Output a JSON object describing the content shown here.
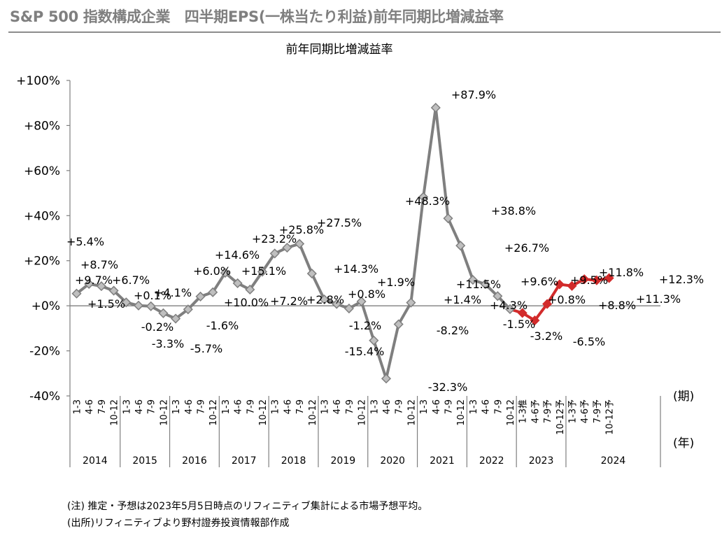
{
  "page_title": "S&P 500 指数構成企業　四半期EPS(一株当たり利益)前年同期比増減益率",
  "notes": [
    "(注) 推定・予想は2023年5月5日時点のリフィニティブ集計による市場予想平均。",
    "(出所)リフィニティブより野村證券投資情報部作成"
  ],
  "chart_data": {
    "type": "line",
    "title": "前年同期比増減益率",
    "xlabel_period_unit": "(期)",
    "xlabel_year_unit": "(年)",
    "ylim": [
      -40,
      100
    ],
    "yticks": [
      -40,
      -20,
      0,
      20,
      40,
      60,
      80,
      100
    ],
    "ytick_labels": [
      "-40%",
      "-20%",
      "+0%",
      "+20%",
      "+40%",
      "+60%",
      "+80%",
      "+100%"
    ],
    "years": [
      "2014",
      "2015",
      "2016",
      "2017",
      "2018",
      "2019",
      "2020",
      "2021",
      "2022",
      "2023",
      "2024"
    ],
    "quarter_labels": [
      "1-3",
      "4-6",
      "7-9",
      "10-12",
      "1-3",
      "4-6",
      "7-9",
      "10-12",
      "1-3",
      "4-6",
      "7-9",
      "10-12",
      "1-3",
      "4-6",
      "7-9",
      "10-12",
      "1-3",
      "4-6",
      "7-9",
      "10-12",
      "1-3",
      "4-6",
      "7-9",
      "10-12",
      "1-3",
      "4-6",
      "7-9",
      "10-12",
      "1-3",
      "4-6",
      "7-9",
      "10-12",
      "1-3",
      "4-6",
      "7-9",
      "10-12",
      "1-3推",
      "4-6予",
      "7-9予",
      "10-12予",
      "1-3予",
      "4-6予",
      "7-9予",
      "10-12予"
    ],
    "series": [
      {
        "role": "actual",
        "color": "#7f7f7f",
        "marker_fill": "#bfbfbf",
        "values": [
          5.4,
          9.7,
          8.7,
          6.7,
          1.5,
          0.1,
          -0.2,
          -3.3,
          -5.7,
          -1.6,
          4.1,
          6.0,
          14.6,
          10.0,
          7.2,
          15.1,
          23.2,
          25.8,
          27.5,
          14.3,
          2.8,
          0.8,
          -1.2,
          1.9,
          -15.4,
          -32.3,
          -8.2,
          1.4,
          48.3,
          87.9,
          38.8,
          26.7,
          11.5,
          9.6,
          4.3,
          -1.5
        ]
      },
      {
        "role": "estimate",
        "color": "#d22b2b",
        "marker_fill": "#d22b2b",
        "values": [
          -3.2,
          -6.5,
          0.8,
          9.5,
          8.8,
          11.8,
          11.3,
          12.3
        ]
      }
    ],
    "data_labels": [
      {
        "i": 1,
        "text": "+9.7%"
      },
      {
        "i": 0,
        "text": "+5.4%"
      },
      {
        "i": 2,
        "text": "+8.7%"
      },
      {
        "i": 3,
        "text": "+6.7%"
      },
      {
        "i": 4,
        "text": "+1.5%"
      },
      {
        "i": 5,
        "text": "+0.1%"
      },
      {
        "i": 6,
        "text": "-0.2%"
      },
      {
        "i": 7,
        "text": "-3.3%"
      },
      {
        "i": 8,
        "text": "-5.7%"
      },
      {
        "i": 9,
        "text": "-1.6%"
      },
      {
        "i": 10,
        "text": "+4.1%"
      },
      {
        "i": 11,
        "text": "+6.0%"
      },
      {
        "i": 12,
        "text": "+14.6%"
      },
      {
        "i": 13,
        "text": "+10.0%"
      },
      {
        "i": 14,
        "text": "+7.2%"
      },
      {
        "i": 15,
        "text": "+15.1%"
      },
      {
        "i": 16,
        "text": "+23.2%"
      },
      {
        "i": 17,
        "text": "+25.8%"
      },
      {
        "i": 18,
        "text": "+27.5%"
      },
      {
        "i": 19,
        "text": "+14.3%"
      },
      {
        "i": 20,
        "text": "+2.8%"
      },
      {
        "i": 21,
        "text": "+0.8%"
      },
      {
        "i": 22,
        "text": "-1.2%"
      },
      {
        "i": 23,
        "text": "+1.9%"
      },
      {
        "i": 24,
        "text": "-15.4%"
      },
      {
        "i": 25,
        "text": "-32.3%"
      },
      {
        "i": 26,
        "text": "-8.2%"
      },
      {
        "i": 27,
        "text": "+1.4%"
      },
      {
        "i": 28,
        "text": "+48.3%"
      },
      {
        "i": 29,
        "text": "+87.9%"
      },
      {
        "i": 30,
        "text": "+38.8%"
      },
      {
        "i": 31,
        "text": "+26.7%"
      },
      {
        "i": 32,
        "text": "+11.5%"
      },
      {
        "i": 33,
        "text": "+9.6%"
      },
      {
        "i": 34,
        "text": "+4.3%"
      },
      {
        "i": 35,
        "text": "-1.5%"
      },
      {
        "i": 36,
        "text": "-3.2%"
      },
      {
        "i": 37,
        "text": "-6.5%"
      },
      {
        "i": 38,
        "text": "+0.8%"
      },
      {
        "i": 39,
        "text": "+9.5%"
      },
      {
        "i": 40,
        "text": "+8.8%"
      },
      {
        "i": 41,
        "text": "+11.8%"
      },
      {
        "i": 42,
        "text": "+11.3%"
      },
      {
        "i": 43,
        "text": "+12.3%"
      }
    ]
  }
}
